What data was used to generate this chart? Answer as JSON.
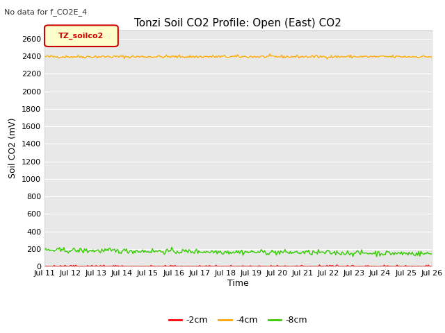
{
  "title": "Tonzi Soil CO2 Profile: Open (East) CO2",
  "no_data_text": "No data for f_CO2E_4",
  "ylabel": "Soil CO2 (mV)",
  "xlabel": "Time",
  "legend_label": "TZ_soilco2",
  "legend_entries": [
    "-2cm",
    "-4cm",
    "-8cm"
  ],
  "legend_colors": [
    "#ff0000",
    "#ffa500",
    "#33cc00"
  ],
  "ylim": [
    0,
    2700
  ],
  "yticks": [
    0,
    200,
    400,
    600,
    800,
    1000,
    1200,
    1400,
    1600,
    1800,
    2000,
    2200,
    2400,
    2600
  ],
  "num_points": 360,
  "orange_mean": 2395,
  "orange_noise": 8,
  "green_mean": 185,
  "green_noise": 15,
  "green_trend": -40,
  "red_mean": 8,
  "red_noise": 5,
  "plot_bg": "#e8e8e8",
  "fig_bg": "#ffffff",
  "grid_color": "#ffffff",
  "title_fontsize": 11,
  "label_fontsize": 9,
  "tick_fontsize": 8
}
